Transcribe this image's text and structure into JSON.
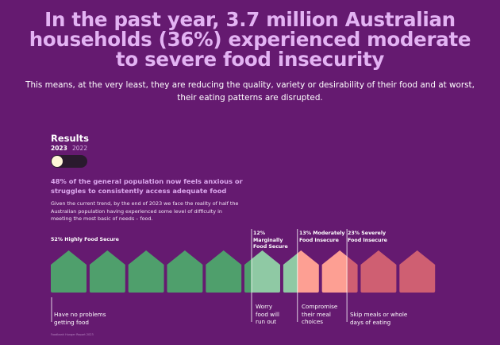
{
  "title": "In the past year, 3.7 million Australian households (36%) experienced moderate to severe food insecurity",
  "subtitle": "This means, at the very least, they are reducing the quality, variety or desirability of their food and at worst, their eating patterns are disrupted.",
  "results": {
    "label": "Results",
    "year_current": "2023",
    "year_previous": "2022",
    "selected_year": "2023"
  },
  "headline": "48% of the general population now feels anxious or struggles to consistently access adequate food",
  "description": "Given the current trend, by the end of 2023 we face the reality of half the Australian population having experienced some level of difficulty in meeting the most basic of needs – food.",
  "source_note": "Foodbank Hunger Report 2023",
  "colors": {
    "background": "#651a70",
    "title": "#e3b3f3",
    "highly_secure": "#4f9f6c",
    "marginally_secure": "#8fc9a4",
    "moderately_insecure": "#fd9f93",
    "severely_insecure": "#cf5f72"
  },
  "chart_data": {
    "type": "icon-array",
    "unit_icon": "house-icon",
    "total_icons": 10,
    "categories": [
      {
        "label": "52% Highly Food Secure",
        "percent": 52,
        "icons": 5.2,
        "color": "#4f9f6c",
        "description": "Have no problems getting food"
      },
      {
        "label": "12% Marginally Food Secure",
        "percent": 12,
        "icons": 1.2,
        "color": "#8fc9a4",
        "description": "Worry food will run out"
      },
      {
        "label": "13% Moderately Food Insecure",
        "percent": 13,
        "icons": 1.3,
        "color": "#fd9f93",
        "description": "Compromise their meal choices"
      },
      {
        "label": "23% Severely Food Insecure",
        "percent": 23,
        "icons": 2.3,
        "color": "#cf5f72",
        "description": "Skip meals or whole days of eating"
      }
    ]
  }
}
